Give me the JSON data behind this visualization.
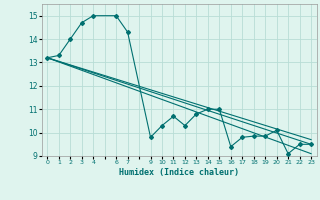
{
  "title": "",
  "xlabel": "Humidex (Indice chaleur)",
  "ylabel": "",
  "background_color": "#dff4ee",
  "grid_color": "#b8ddd6",
  "line_color": "#007070",
  "xlim": [
    -0.5,
    23.5
  ],
  "ylim": [
    9.0,
    15.5
  ],
  "yticks": [
    9,
    10,
    11,
    12,
    13,
    14,
    15
  ],
  "xtick_positions": [
    0,
    1,
    2,
    3,
    4,
    6,
    7,
    9,
    10,
    11,
    12,
    13,
    14,
    15,
    16,
    17,
    18,
    19,
    20,
    21,
    22,
    23
  ],
  "xtick_labels": [
    "0",
    "1",
    "2",
    "3",
    "4",
    "6",
    "7",
    "9",
    "10",
    "11",
    "12",
    "13",
    "14",
    "15",
    "16",
    "17",
    "18",
    "19",
    "20",
    "21",
    "22",
    "23"
  ],
  "series1_x": [
    0,
    1,
    2,
    3,
    4,
    6,
    7,
    9,
    10,
    11,
    12,
    13,
    14,
    15,
    16,
    17,
    18,
    19,
    20,
    21,
    22,
    23
  ],
  "series1_y": [
    13.2,
    13.3,
    14.0,
    14.7,
    15.0,
    15.0,
    14.3,
    9.8,
    10.3,
    10.7,
    10.3,
    10.8,
    11.0,
    11.0,
    9.4,
    9.8,
    9.85,
    9.85,
    10.1,
    9.1,
    9.5,
    9.5
  ],
  "series2_x": [
    0,
    23
  ],
  "series2_y": [
    13.2,
    9.1
  ],
  "series3_x": [
    0,
    23
  ],
  "series3_y": [
    13.2,
    9.5
  ],
  "series4_x": [
    0,
    23
  ],
  "series4_y": [
    13.2,
    9.7
  ]
}
